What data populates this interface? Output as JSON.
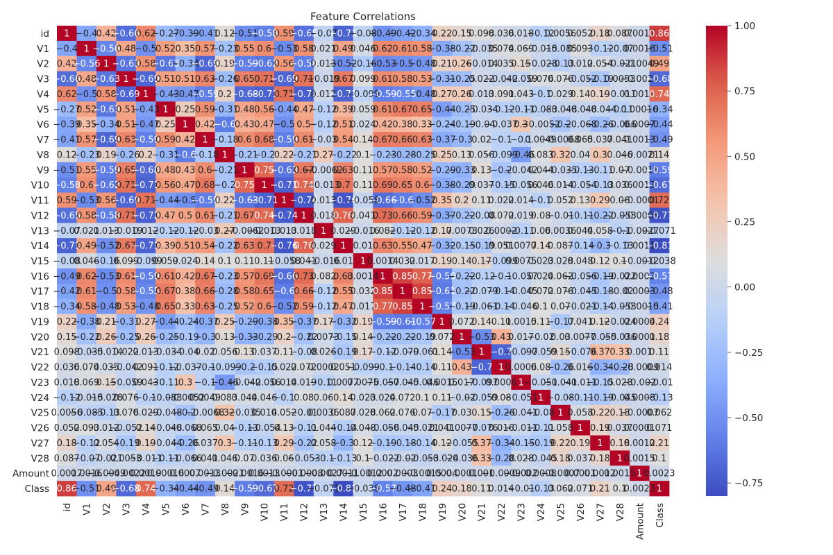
{
  "chart_data": {
    "type": "heatmap",
    "title": "Feature Correlations",
    "labels": [
      "id",
      "V1",
      "V2",
      "V3",
      "V4",
      "V5",
      "V6",
      "V7",
      "V8",
      "V9",
      "V10",
      "V11",
      "V12",
      "V13",
      "V14",
      "V15",
      "V16",
      "V17",
      "V18",
      "V19",
      "V20",
      "V21",
      "V22",
      "V23",
      "V24",
      "V25",
      "V26",
      "V27",
      "V28",
      "Amount",
      "Class"
    ],
    "matrix": [
      [
        1,
        -0.4,
        0.42,
        -0.66,
        0.62,
        -0.27,
        -0.39,
        -0.41,
        0.12,
        -0.51,
        -0.58,
        0.59,
        -0.65,
        -0.07,
        -0.71,
        -0.08,
        -0.49,
        -0.42,
        -0.34,
        0.22,
        0.15,
        0.098,
        0.036,
        0.018,
        -0.12,
        0.0056,
        0.052,
        0.18,
        0.087,
        0.0017,
        0.86
      ],
      [
        -0.4,
        1,
        -0.56,
        0.48,
        -0.5,
        0.52,
        0.35,
        0.57,
        -0.23,
        0.55,
        0.6,
        -0.53,
        0.58,
        0.021,
        0.49,
        0.046,
        0.62,
        0.61,
        0.58,
        -0.38,
        -0.22,
        -0.035,
        0.074,
        0.069,
        -0.015,
        -0.085,
        0.093,
        -0.12,
        -0.07,
        0.0016,
        -0.51
      ],
      [
        0.42,
        -0.56,
        1,
        -0.63,
        0.58,
        -0.63,
        -0.34,
        -0.69,
        0.19,
        -0.59,
        -0.62,
        0.56,
        -0.58,
        0.013,
        -0.52,
        -0.16,
        -0.53,
        -0.5,
        -0.48,
        0.21,
        0.26,
        -0.014,
        0.035,
        0.15,
        -0.028,
        -0.13,
        0.012,
        0.054,
        -0.021,
        -0.0049,
        0.49
      ],
      [
        -0.66,
        0.48,
        -0.63,
        1,
        -0.69,
        0.51,
        0.51,
        0.63,
        -0.26,
        0.65,
        0.71,
        -0.69,
        0.71,
        -0.019,
        0.67,
        0.099,
        0.61,
        0.58,
        0.53,
        -0.31,
        -0.25,
        0.022,
        -0.042,
        -0.059,
        0.076,
        0.076,
        -0.052,
        -0.19,
        0.0053,
        -0.0022,
        -0.68
      ],
      [
        0.62,
        -0.5,
        0.58,
        -0.69,
        1,
        -0.43,
        -0.47,
        -0.59,
        0.2,
        -0.68,
        -0.71,
        0.71,
        -0.72,
        0.012,
        -0.71,
        -0.099,
        -0.59,
        -0.55,
        -0.48,
        0.27,
        0.26,
        0.013,
        0.091,
        0.043,
        -0.1,
        0.029,
        0.14,
        0.19,
        -0.011,
        0.0019,
        0.74
      ],
      [
        -0.27,
        0.52,
        -0.63,
        0.51,
        -0.43,
        1,
        0.25,
        0.59,
        -0.31,
        0.48,
        0.56,
        -0.44,
        0.47,
        -0.12,
        0.39,
        0.059,
        0.61,
        0.67,
        0.65,
        -0.44,
        -0.25,
        -0.034,
        -0.12,
        -0.11,
        -0.083,
        -0.048,
        -0.048,
        -0.044,
        -0.11,
        0.00016,
        -0.34
      ],
      [
        -0.39,
        0.35,
        -0.34,
        0.51,
        -0.47,
        0.25,
        1,
        0.42,
        -0.6,
        0.43,
        0.47,
        -0.5,
        0.5,
        -0.12,
        0.51,
        0.024,
        0.42,
        0.38,
        0.33,
        -0.24,
        -0.19,
        -0.04,
        -0.037,
        0.3,
        -0.0052,
        -0.2,
        -0.068,
        -0.26,
        -0.066,
        0.0007,
        -0.44
      ],
      [
        -0.41,
        0.57,
        -0.69,
        0.63,
        -0.59,
        0.59,
        0.42,
        1,
        -0.18,
        0.6,
        0.68,
        -0.59,
        0.61,
        -0.03,
        0.54,
        0.14,
        0.67,
        0.66,
        0.63,
        -0.37,
        -0.3,
        0.02,
        -0.1,
        -0.1,
        0.0049,
        -0.0068,
        0.065,
        0.037,
        0.041,
        0.0013,
        -0.49
      ],
      [
        0.12,
        -0.23,
        0.19,
        -0.26,
        0.2,
        -0.31,
        -0.6,
        -0.18,
        1,
        -0.21,
        -0.2,
        0.22,
        -0.21,
        0.27,
        -0.22,
        0.1,
        -0.23,
        -0.28,
        -0.25,
        0.25,
        0.13,
        0.056,
        -0.099,
        -0.46,
        0.083,
        0.32,
        0.04,
        0.3,
        0.046,
        -0.0021,
        0.14
      ],
      [
        -0.51,
        0.55,
        -0.59,
        0.65,
        -0.68,
        0.48,
        0.43,
        0.6,
        -0.21,
        1,
        0.75,
        -0.63,
        0.67,
        -0.0062,
        0.63,
        0.11,
        0.57,
        0.58,
        0.52,
        -0.29,
        -0.33,
        0.13,
        -0.2,
        -0.042,
        0.044,
        -0.035,
        -0.13,
        -0.11,
        0.07,
        -0.0016,
        -0.59
      ],
      [
        -0.58,
        0.6,
        -0.62,
        0.71,
        -0.71,
        0.56,
        0.47,
        0.68,
        -0.2,
        0.75,
        1,
        -0.71,
        0.74,
        -0.013,
        0.7,
        0.11,
        0.69,
        0.65,
        0.6,
        -0.38,
        -0.29,
        0.037,
        -0.15,
        -0.056,
        0.046,
        0.014,
        -0.054,
        -0.13,
        0.036,
        0.0013,
        -0.67
      ],
      [
        0.59,
        -0.53,
        0.56,
        -0.69,
        0.71,
        -0.44,
        -0.5,
        -0.59,
        0.22,
        -0.63,
        -0.71,
        1,
        -0.74,
        0.013,
        -0.76,
        -0.058,
        -0.66,
        -0.6,
        -0.52,
        0.35,
        0.2,
        0.11,
        0.022,
        0.014,
        -0.1,
        0.052,
        0.13,
        0.29,
        0.06,
        -0.0001,
        0.72
      ],
      [
        -0.65,
        0.58,
        -0.58,
        0.71,
        -0.72,
        0.47,
        0.5,
        0.61,
        -0.21,
        0.67,
        0.74,
        -0.74,
        1,
        0.018,
        0.76,
        0.041,
        0.73,
        0.66,
        0.59,
        -0.37,
        -0.22,
        -0.08,
        0.072,
        0.019,
        0.08,
        -0.01,
        -0.11,
        -0.22,
        -0.053,
        -0.0008,
        -0.77
      ],
      [
        -0.07,
        0.021,
        0.013,
        -0.019,
        0.012,
        -0.12,
        -0.12,
        -0.03,
        0.27,
        -0.0062,
        -0.013,
        0.013,
        0.018,
        1,
        0.029,
        -0.016,
        0.082,
        -0.12,
        -0.12,
        0.17,
        0.0073,
        0.026,
        0.0002,
        -0.11,
        0.06,
        0.0036,
        0.044,
        0.058,
        -0.1,
        -0.0027,
        -0.071
      ],
      [
        -0.71,
        0.49,
        -0.52,
        0.67,
        -0.71,
        0.39,
        0.51,
        0.54,
        -0.22,
        0.63,
        0.7,
        -0.76,
        0.76,
        0.029,
        1,
        0.01,
        0.63,
        0.55,
        0.47,
        -0.32,
        -0.15,
        -0.19,
        0.051,
        0.0077,
        0.14,
        0.087,
        -0.14,
        -0.3,
        -0.13,
        0.0011,
        -0.81
      ],
      [
        -0.08,
        0.046,
        -0.16,
        0.099,
        -0.099,
        0.059,
        0.024,
        0.14,
        0.1,
        0.11,
        0.11,
        -0.058,
        0.041,
        -0.016,
        0.01,
        1,
        0.0014,
        0.032,
        0.017,
        0.19,
        0.14,
        0.17,
        -0.099,
        0.0075,
        0.023,
        0.028,
        0.048,
        0.12,
        0.1,
        -0.0012,
        -0.038
      ],
      [
        -0.49,
        0.62,
        -0.53,
        0.61,
        -0.59,
        0.61,
        0.42,
        0.67,
        -0.23,
        0.57,
        0.69,
        -0.66,
        0.73,
        0.082,
        0.63,
        0.0014,
        1,
        0.85,
        0.77,
        -0.59,
        -0.22,
        -0.12,
        -0.1,
        -0.057,
        0.024,
        0.062,
        -0.056,
        -0.19,
        -0.022,
        0.0002,
        -0.57
      ],
      [
        -0.42,
        0.61,
        -0.5,
        0.58,
        -0.55,
        0.67,
        0.38,
        0.66,
        -0.28,
        0.58,
        0.65,
        -0.6,
        0.66,
        -0.12,
        0.55,
        0.032,
        0.85,
        1,
        0.85,
        -0.61,
        -0.22,
        -0.079,
        -0.14,
        -0.045,
        0.072,
        0.076,
        -0.045,
        -0.18,
        -0.02,
        0.0003,
        -0.48
      ],
      [
        -0.34,
        0.58,
        -0.48,
        0.53,
        -0.48,
        0.65,
        0.33,
        0.63,
        -0.25,
        0.52,
        0.6,
        -0.52,
        0.59,
        -0.12,
        0.47,
        0.017,
        0.77,
        0.85,
        1,
        -0.57,
        -0.19,
        -0.061,
        -0.14,
        -0.046,
        0.1,
        0.07,
        -0.021,
        -0.14,
        -0.053,
        -0.0015,
        -0.41
      ],
      [
        0.22,
        -0.38,
        0.21,
        -0.31,
        0.27,
        -0.44,
        -0.24,
        -0.37,
        0.25,
        -0.29,
        -0.38,
        0.35,
        -0.37,
        0.17,
        -0.32,
        0.19,
        -0.59,
        -0.61,
        -0.57,
        1,
        0.072,
        0.14,
        0.11,
        0.0015,
        0.11,
        -0.17,
        0.041,
        0.12,
        -0.024,
        0.0004,
        0.24
      ],
      [
        0.15,
        -0.22,
        0.26,
        -0.25,
        0.26,
        -0.25,
        -0.19,
        -0.3,
        0.13,
        -0.33,
        -0.29,
        0.2,
        -0.22,
        0.0073,
        -0.15,
        0.14,
        -0.22,
        -0.22,
        -0.19,
        0.072,
        1,
        -0.53,
        0.43,
        0.017,
        -0.02,
        0.03,
        0.0077,
        -0.055,
        -0.036,
        0.0001,
        0.18
      ],
      [
        0.098,
        -0.035,
        -0.014,
        0.022,
        0.013,
        -0.034,
        -0.04,
        0.02,
        0.056,
        0.13,
        0.037,
        0.11,
        -0.08,
        0.026,
        -0.19,
        0.17,
        -0.12,
        -0.079,
        -0.061,
        0.14,
        -0.53,
        1,
        -0.7,
        -0.097,
        -0.059,
        0.15,
        -0.076,
        0.37,
        0.33,
        0.001,
        0.11
      ],
      [
        0.036,
        0.074,
        0.035,
        -0.042,
        0.091,
        -0.12,
        -0.037,
        -0.1,
        -0.099,
        -0.2,
        -0.15,
        0.022,
        0.072,
        0.0002,
        0.051,
        -0.099,
        -0.1,
        -0.14,
        -0.14,
        0.11,
        0.43,
        -0.7,
        1,
        0.0006,
        0.08,
        -0.26,
        0.016,
        -0.34,
        -0.28,
        -0.0009,
        0.014
      ],
      [
        0.018,
        0.069,
        0.15,
        -0.059,
        0.043,
        -0.11,
        0.3,
        -0.1,
        -0.46,
        -0.042,
        -0.056,
        0.014,
        0.019,
        -0.11,
        0.0077,
        0.0075,
        -0.057,
        -0.045,
        -0.046,
        0.0015,
        0.017,
        -0.097,
        0.0006,
        1,
        -0.051,
        -0.041,
        -0.011,
        -0.15,
        0.028,
        -0.002,
        -0.01
      ],
      [
        -0.12,
        -0.015,
        -0.028,
        0.076,
        -0.1,
        -0.083,
        -0.0052,
        0.0049,
        0.083,
        0.044,
        0.046,
        -0.1,
        0.08,
        0.06,
        0.14,
        0.023,
        0.024,
        0.072,
        0.1,
        0.11,
        -0.02,
        -0.059,
        0.08,
        -0.051,
        1,
        -0.08,
        -0.11,
        -0.19,
        -0.045,
        0.0008,
        -0.13
      ],
      [
        0.0056,
        -0.085,
        -0.13,
        0.076,
        0.029,
        -0.048,
        -0.2,
        -0.0068,
        0.32,
        -0.035,
        0.014,
        0.052,
        -0.01,
        0.0036,
        0.087,
        0.028,
        0.062,
        0.076,
        0.07,
        -0.17,
        0.03,
        0.15,
        -0.26,
        -0.041,
        -0.08,
        1,
        0.058,
        0.22,
        0.18,
        -0.0007,
        0.062
      ],
      [
        0.052,
        0.093,
        0.012,
        -0.052,
        0.14,
        -0.048,
        -0.068,
        0.065,
        0.04,
        -0.13,
        -0.054,
        0.13,
        -0.11,
        0.044,
        -0.14,
        0.048,
        -0.056,
        -0.045,
        -0.021,
        0.041,
        0.0077,
        -0.076,
        0.016,
        -0.011,
        -0.11,
        0.058,
        1,
        0.19,
        0.037,
        0.0001,
        0.071
      ],
      [
        0.18,
        -0.12,
        0.054,
        -0.19,
        0.19,
        -0.044,
        -0.26,
        0.037,
        0.3,
        -0.11,
        -0.13,
        0.29,
        -0.22,
        0.058,
        -0.3,
        0.12,
        -0.19,
        -0.18,
        -0.14,
        0.12,
        -0.055,
        0.37,
        -0.34,
        -0.15,
        -0.19,
        0.22,
        0.19,
        1,
        0.18,
        0.0012,
        0.21
      ],
      [
        0.087,
        -0.07,
        -0.021,
        0.0053,
        -0.011,
        -0.11,
        -0.066,
        0.041,
        0.046,
        0.07,
        0.036,
        0.06,
        -0.053,
        -0.1,
        -0.13,
        0.1,
        -0.022,
        -0.02,
        -0.053,
        -0.024,
        -0.036,
        0.33,
        -0.28,
        0.028,
        -0.045,
        0.18,
        0.037,
        0.18,
        1,
        0.0015,
        0.1
      ],
      [
        0.0017,
        0.0016,
        -0.0049,
        -0.0022,
        0.0019,
        0.00016,
        0.0007,
        0.0013,
        -0.0021,
        -0.0016,
        0.0013,
        -0.0001,
        -0.0008,
        -0.0027,
        0.0011,
        -0.0012,
        0.0002,
        0.0003,
        -0.0015,
        0.0004,
        0.0001,
        0.001,
        -0.0009,
        -0.002,
        0.0008,
        -0.0007,
        0.0001,
        0.0012,
        0.0015,
        1,
        0.0023
      ],
      [
        0.86,
        -0.51,
        0.49,
        -0.68,
        0.74,
        -0.34,
        -0.44,
        -0.49,
        0.14,
        -0.59,
        -0.67,
        0.72,
        -0.77,
        -0.071,
        -0.81,
        -0.038,
        -0.57,
        -0.48,
        -0.41,
        0.24,
        0.18,
        0.11,
        0.014,
        -0.01,
        -0.13,
        0.062,
        0.071,
        0.21,
        0.1,
        0.0023,
        1
      ]
    ],
    "colormap": "coolwarm",
    "colorbar": {
      "min": -0.8,
      "max": 1.0,
      "ticks": [
        "1.00",
        "0.75",
        "0.50",
        "0.25",
        "0.00",
        "−0.25",
        "−0.50",
        "−0.75"
      ],
      "tick_values": [
        1.0,
        0.75,
        0.5,
        0.25,
        0.0,
        -0.25,
        -0.5,
        -0.75
      ]
    },
    "annotated": true,
    "grid": false,
    "legend": "right colorbar"
  }
}
